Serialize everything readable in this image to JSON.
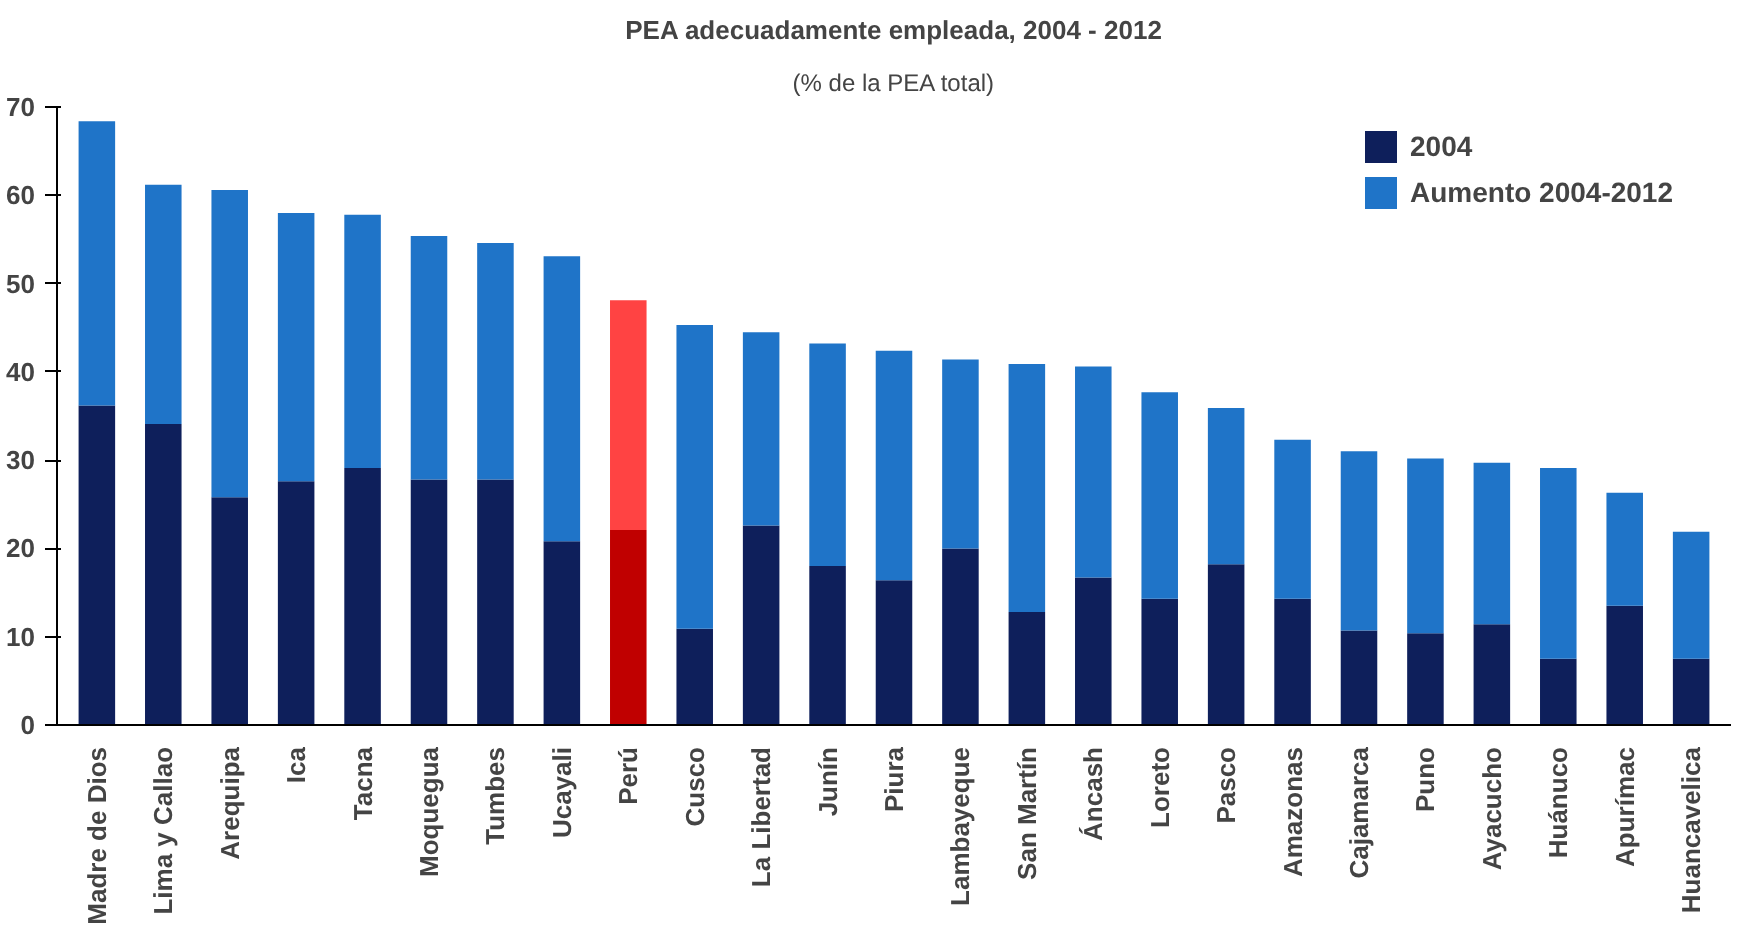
{
  "chart_data": {
    "type": "bar",
    "stacked": true,
    "title": "PEA adecuadamente empleada, 2004 - 2012",
    "subtitle": "(% de la PEA total)",
    "categories": [
      "Madre de Dios",
      "Lima y Callao",
      "Arequipa",
      "Ica",
      "Tacna",
      "Moquegua",
      "Tumbes",
      "Ucayali",
      "Perú",
      "Cusco",
      "La Libertad",
      "Junín",
      "Piura",
      "Lambayeque",
      "San Martín",
      "Áncash",
      "Loreto",
      "Pasco",
      "Amazonas",
      "Cajamarca",
      "Puno",
      "Ayacucho",
      "Huánuco",
      "Apurímac",
      "Huancavelica"
    ],
    "series": [
      {
        "name": "2004",
        "colors": [
          "#0e1f5b",
          "#0e1f5b",
          "#0e1f5b",
          "#0e1f5b",
          "#0e1f5b",
          "#0e1f5b",
          "#0e1f5b",
          "#0e1f5b",
          "#c00000",
          "#0e1f5b",
          "#0e1f5b",
          "#0e1f5b",
          "#0e1f5b",
          "#0e1f5b",
          "#0e1f5b",
          "#0e1f5b",
          "#0e1f5b",
          "#0e1f5b",
          "#0e1f5b",
          "#0e1f5b",
          "#0e1f5b",
          "#0e1f5b",
          "#0e1f5b",
          "#0e1f5b",
          "#0e1f5b"
        ],
        "values": [
          36.2,
          34.1,
          25.8,
          27.6,
          29.1,
          27.8,
          27.8,
          20.8,
          22.1,
          10.9,
          22.6,
          18.0,
          16.4,
          20.0,
          12.8,
          16.7,
          14.3,
          18.2,
          14.3,
          10.7,
          10.4,
          11.4,
          7.5,
          13.5,
          7.5
        ]
      },
      {
        "name": "Aumento 2004-2012",
        "colors": [
          "#1f74c8",
          "#1f74c8",
          "#1f74c8",
          "#1f74c8",
          "#1f74c8",
          "#1f74c8",
          "#1f74c8",
          "#1f74c8",
          "#ff4343",
          "#1f74c8",
          "#1f74c8",
          "#1f74c8",
          "#1f74c8",
          "#1f74c8",
          "#1f74c8",
          "#1f74c8",
          "#1f74c8",
          "#1f74c8",
          "#1f74c8",
          "#1f74c8",
          "#1f74c8",
          "#1f74c8",
          "#1f74c8",
          "#1f74c8",
          "#1f74c8"
        ],
        "values": [
          32.2,
          27.1,
          34.8,
          30.4,
          28.7,
          27.6,
          26.8,
          32.3,
          26.0,
          34.4,
          21.9,
          25.2,
          26.0,
          21.4,
          28.1,
          23.9,
          23.4,
          17.7,
          18.0,
          20.3,
          19.8,
          18.3,
          21.6,
          12.8,
          14.4
        ]
      }
    ],
    "ylim": [
      0,
      70
    ],
    "yticks": [
      0,
      10,
      20,
      30,
      40,
      50,
      60,
      70
    ],
    "grid": false,
    "legend": "top right"
  }
}
